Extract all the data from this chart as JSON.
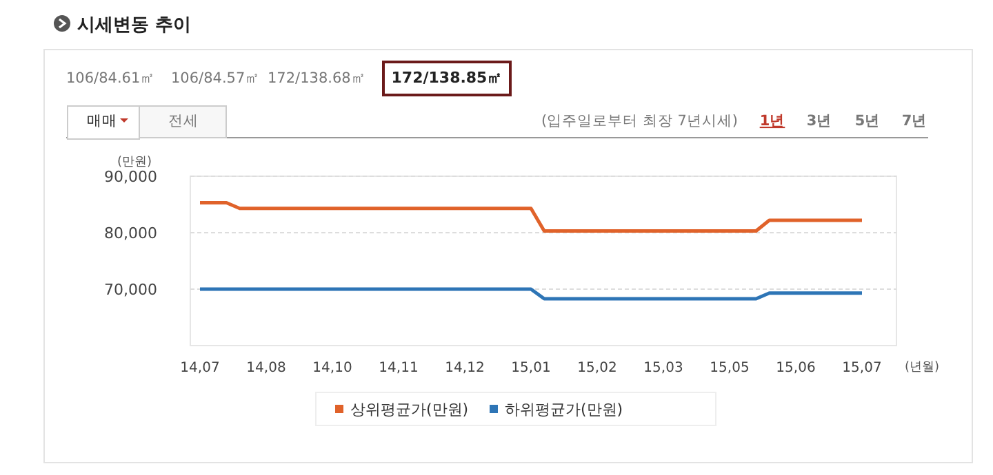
{
  "chart_data": {
    "type": "line",
    "title": "시세변동 추이",
    "ylabel": "(만원)",
    "xlabel": "(년월)",
    "annotations": [
      "106/84.61㎡",
      "106/84.57㎡",
      "172/138.68㎡",
      "172/138.85㎡",
      "매매",
      "전세",
      "(입주일로부터 최장 7년시세)",
      "1년",
      "3년",
      "5년",
      "7년"
    ],
    "categories": [
      "14,07",
      null,
      null,
      null,
      null,
      "14,08",
      null,
      null,
      null,
      null,
      "14,10",
      null,
      null,
      null,
      null,
      "14,11",
      null,
      null,
      null,
      null,
      "14,12",
      null,
      null,
      null,
      null,
      "15,01",
      null,
      null,
      null,
      null,
      "15,02",
      null,
      null,
      null,
      null,
      "15,03",
      null,
      null,
      null,
      null,
      "15,05",
      null,
      null,
      null,
      null,
      "15,06",
      null,
      null,
      null,
      null,
      "15,07"
    ],
    "ylim": [
      60000,
      90000
    ],
    "yticks": [
      {
        "value": 70000,
        "label": "70,000"
      },
      {
        "value": 80000,
        "label": "80,000"
      },
      {
        "value": 90000,
        "label": "90,000"
      }
    ],
    "grid": "y",
    "legend": "bottom",
    "marker": "none",
    "line_style": "solid",
    "series": [
      {
        "name": "상위평균가(만원)",
        "color": "#e0622a",
        "values": [
          85300,
          85300,
          85300,
          84300,
          84300,
          84300,
          84300,
          84300,
          84300,
          84300,
          84300,
          84300,
          84300,
          84300,
          84300,
          84300,
          84300,
          84300,
          84300,
          84300,
          84300,
          84300,
          84300,
          84300,
          84300,
          84300,
          80300,
          80300,
          80300,
          80300,
          80300,
          80300,
          80300,
          80300,
          80300,
          80300,
          80300,
          80300,
          80300,
          80300,
          80300,
          80300,
          80300,
          82200,
          82200,
          82200,
          82200,
          82200,
          82200,
          82200,
          82200
        ]
      },
      {
        "name": "하위평균가(만원)",
        "color": "#2e75b6",
        "values": [
          70000,
          70000,
          70000,
          70000,
          70000,
          70000,
          70000,
          70000,
          70000,
          70000,
          70000,
          70000,
          70000,
          70000,
          70000,
          70000,
          70000,
          70000,
          70000,
          70000,
          70000,
          70000,
          70000,
          70000,
          70000,
          70000,
          68300,
          68300,
          68300,
          68300,
          68300,
          68300,
          68300,
          68300,
          68300,
          68300,
          68300,
          68300,
          68300,
          68300,
          68300,
          68300,
          68300,
          69300,
          69300,
          69300,
          69300,
          69300,
          69300,
          69300,
          69300
        ]
      }
    ]
  }
}
